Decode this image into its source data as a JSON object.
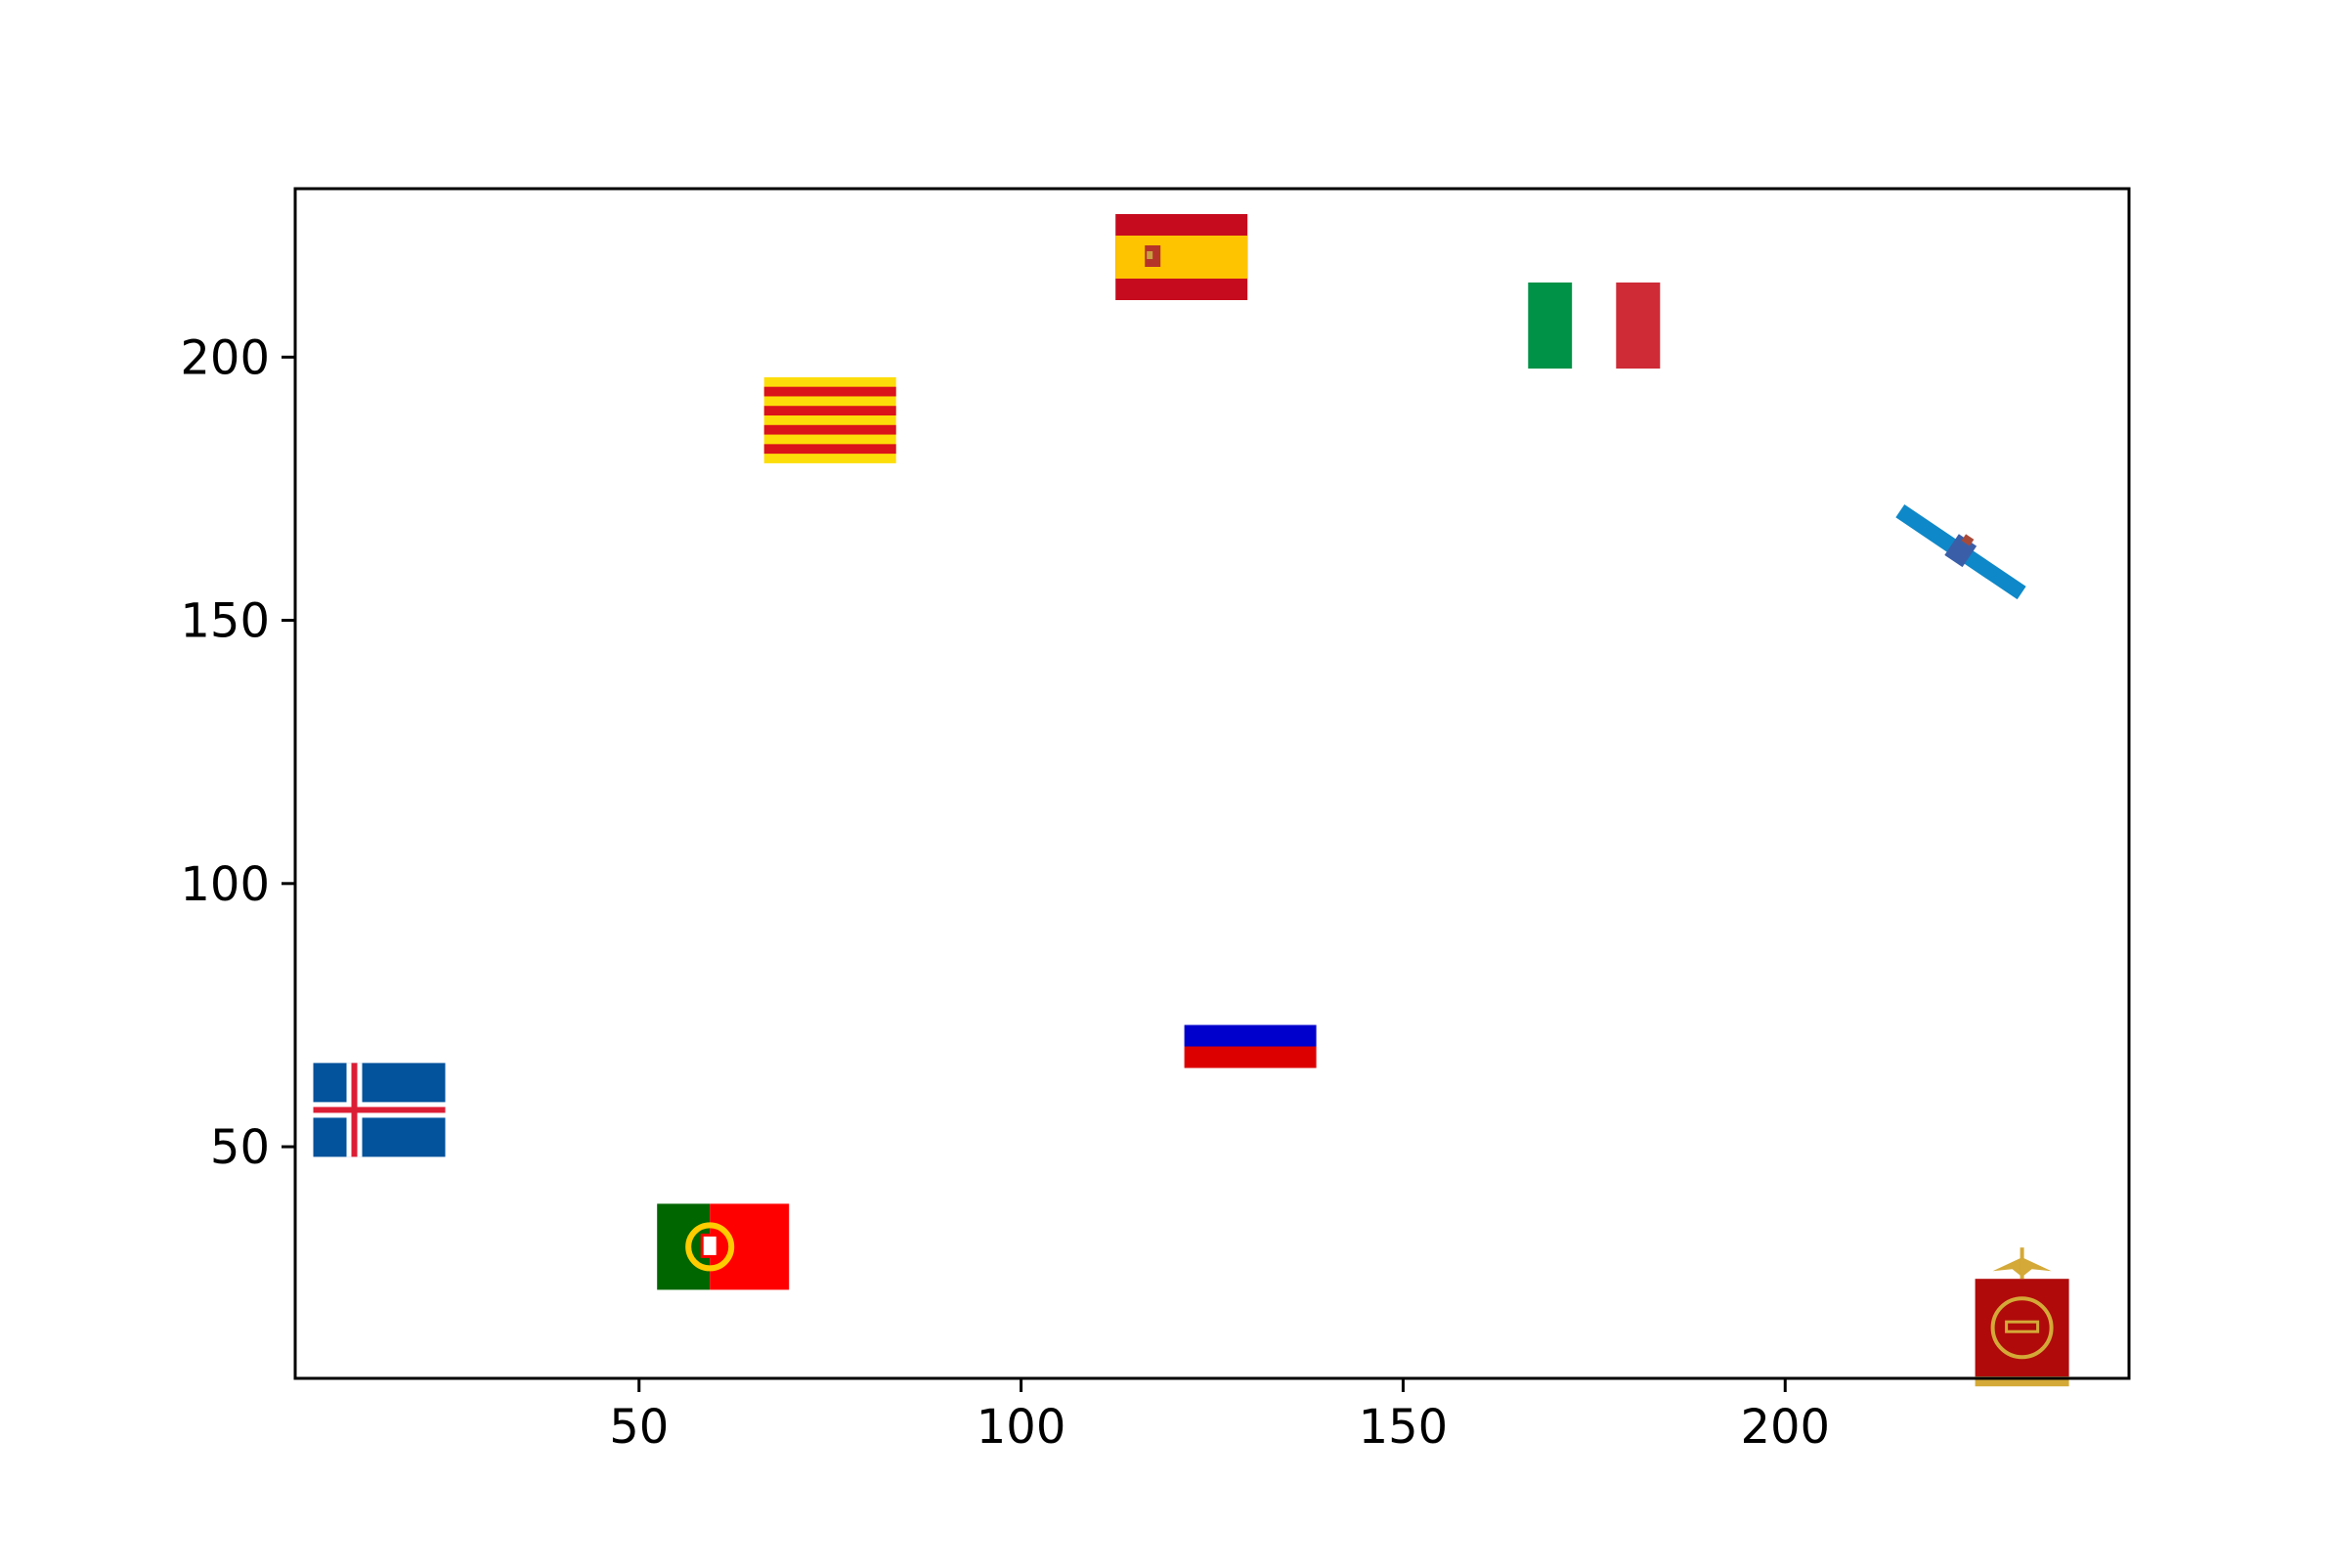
{
  "chart_data": {
    "type": "scatter",
    "title": "",
    "xlabel": "",
    "ylabel": "",
    "xlim": [
      5,
      245
    ],
    "ylim": [
      6,
      232
    ],
    "xticks": [
      50,
      100,
      150,
      200
    ],
    "yticks": [
      50,
      100,
      150,
      200
    ],
    "xtick_labels": [
      "50",
      "100",
      "150",
      "200"
    ],
    "ytick_labels": [
      "50",
      "100",
      "150",
      "200"
    ],
    "grid": false,
    "legend": "none",
    "points": [
      {
        "flag": "iceland-flag",
        "x": 16,
        "y": 57
      },
      {
        "flag": "portugal-flag",
        "x": 61,
        "y": 31
      },
      {
        "flag": "catalonia-flag",
        "x": 75,
        "y": 188
      },
      {
        "flag": "spain-flag",
        "x": 121,
        "y": 219
      },
      {
        "flag": "russia-flag",
        "x": 130,
        "y": 67
      },
      {
        "flag": "italy-flag",
        "x": 175,
        "y": 206
      },
      {
        "flag": "canary-islands-flag",
        "x": 223,
        "y": 163
      },
      {
        "flag": "roman-standard-flag",
        "x": 231,
        "y": 16
      }
    ],
    "colors": {
      "iceland_blue": "#02529c",
      "iceland_white": "#ffffff",
      "iceland_red": "#dc1e35",
      "portugal_green": "#006600",
      "portugal_red": "#ff0000",
      "portugal_gold": "#ffcc00",
      "catalonia_yellow": "#fcdd09",
      "catalonia_red": "#da121a",
      "spain_red": "#c60b1e",
      "spain_yellow": "#ffc400",
      "russia_white": "#ffffff",
      "russia_blue": "#0000cc",
      "russia_red": "#dd0000",
      "italy_green": "#009246",
      "italy_white": "#ffffff",
      "italy_red": "#ce2b37",
      "canary_blue": "#0e88c8",
      "canary_shield": "#3a5fa8",
      "roman_red": "#b00a0a",
      "roman_gold": "#d4a937"
    }
  }
}
